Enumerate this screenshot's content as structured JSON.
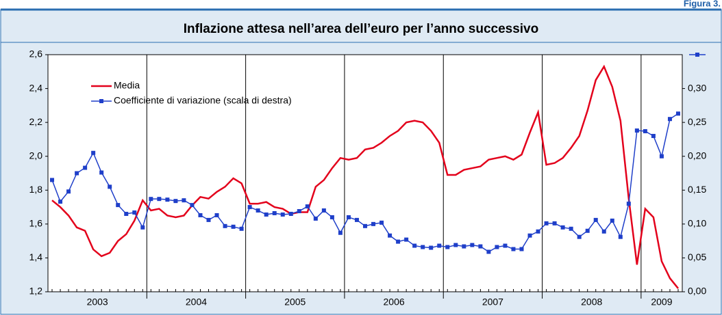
{
  "figure_label": "Figura 3.",
  "chart_data": {
    "type": "line",
    "title": "Inflazione attesa nell’area dell’euro per l’anno successivo",
    "year_labels": [
      "2003",
      "2004",
      "2005",
      "2006",
      "2007",
      "2008",
      "2009"
    ],
    "ylim": [
      1.2,
      2.6
    ],
    "yticks": [
      {
        "value": 1.2,
        "label": "1,2"
      },
      {
        "value": 1.4,
        "label": "1,4"
      },
      {
        "value": 1.6,
        "label": "1,6"
      },
      {
        "value": 1.8,
        "label": "1,8"
      },
      {
        "value": 2.0,
        "label": "2,0"
      },
      {
        "value": 2.2,
        "label": "2,2"
      },
      {
        "value": 2.4,
        "label": "2,4"
      },
      {
        "value": 2.6,
        "label": "2,6"
      }
    ],
    "y2lim": [
      0,
      0.35
    ],
    "y2ticks": [
      {
        "value": 0,
        "label": "0,00"
      },
      {
        "value": 0.05,
        "label": "0,05"
      },
      {
        "value": 0.1,
        "label": "0,10"
      },
      {
        "value": 0.15,
        "label": "0,15"
      },
      {
        "value": 0.2,
        "label": "0,20"
      },
      {
        "value": 0.25,
        "label": "0,25"
      },
      {
        "value": 0.3,
        "label": "0,30"
      }
    ],
    "series": [
      {
        "name": "Media",
        "color": "#e3001b",
        "axis": "y",
        "values": [
          1.74,
          1.7,
          1.65,
          1.58,
          1.56,
          1.45,
          1.41,
          1.43,
          1.5,
          1.54,
          1.62,
          1.74,
          1.68,
          1.69,
          1.65,
          1.64,
          1.65,
          1.71,
          1.76,
          1.75,
          1.79,
          1.82,
          1.87,
          1.84,
          1.72,
          1.72,
          1.73,
          1.7,
          1.69,
          1.66,
          1.67,
          1.67,
          1.82,
          1.86,
          1.93,
          1.99,
          1.98,
          1.99,
          2.04,
          2.05,
          2.08,
          2.12,
          2.15,
          2.2,
          2.21,
          2.2,
          2.15,
          2.08,
          1.89,
          1.89,
          1.92,
          1.93,
          1.94,
          1.98,
          1.99,
          2.0,
          1.98,
          2.01,
          2.14,
          2.26,
          1.95,
          1.96,
          1.99,
          2.05,
          2.12,
          2.27,
          2.45,
          2.53,
          2.41,
          2.21,
          1.75,
          1.36,
          1.69,
          1.64,
          1.38,
          1.28,
          1.22
        ]
      },
      {
        "name": "Coefficiente di variazione (scala di destra)",
        "color": "#1f3fc9",
        "axis": "y2",
        "values": [
          0.165,
          0.133,
          0.148,
          0.175,
          0.183,
          0.205,
          0.176,
          0.155,
          0.128,
          0.115,
          0.117,
          0.095,
          0.137,
          0.137,
          0.136,
          0.134,
          0.135,
          0.128,
          0.113,
          0.106,
          0.113,
          0.097,
          0.096,
          0.093,
          0.125,
          0.12,
          0.114,
          0.116,
          0.114,
          0.115,
          0.119,
          0.126,
          0.108,
          0.12,
          0.11,
          0.087,
          0.11,
          0.106,
          0.097,
          0.1,
          0.102,
          0.083,
          0.074,
          0.077,
          0.068,
          0.066,
          0.065,
          0.068,
          0.066,
          0.069,
          0.067,
          0.069,
          0.067,
          0.059,
          0.066,
          0.068,
          0.063,
          0.063,
          0.083,
          0.089,
          0.101,
          0.101,
          0.095,
          0.093,
          0.081,
          0.09,
          0.106,
          0.089,
          0.105,
          0.081,
          0.13,
          0.238,
          0.237,
          0.23,
          0.2,
          0.255,
          0.263
        ]
      }
    ]
  }
}
